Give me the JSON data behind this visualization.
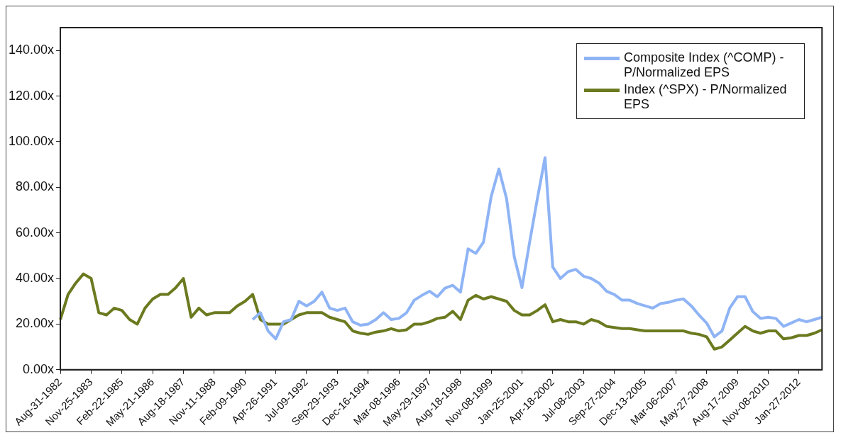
{
  "chart_data": {
    "type": "line",
    "legend": "top right",
    "grid": false,
    "marker": "none",
    "line_style": "solid",
    "categories": [
      "Aug-31-1982",
      null,
      null,
      null,
      "Nov-25-1983",
      null,
      null,
      null,
      "Feb-22-1985",
      null,
      null,
      null,
      "May-21-1986",
      null,
      null,
      null,
      "Aug-18-1987",
      null,
      null,
      null,
      "Nov-11-1988",
      null,
      null,
      null,
      "Feb-09-1990",
      null,
      null,
      null,
      "Apr-26-1991",
      null,
      null,
      null,
      "Jul-09-1992",
      null,
      null,
      null,
      "Sep-29-1993",
      null,
      null,
      null,
      "Dec-16-1994",
      null,
      null,
      null,
      "Mar-08-1996",
      null,
      null,
      null,
      "May-29-1997",
      null,
      null,
      null,
      "Aug-18-1998",
      null,
      null,
      null,
      "Nov-08-1999",
      null,
      null,
      null,
      "Jan-25-2001",
      null,
      null,
      null,
      "Apr-18-2002",
      null,
      null,
      null,
      "Jul-08-2003",
      null,
      null,
      null,
      "Sep-27-2004",
      null,
      null,
      null,
      "Dec-13-2005",
      null,
      null,
      null,
      "Mar-06-2007",
      null,
      null,
      null,
      "May-27-2008",
      null,
      null,
      null,
      "Aug-17-2009",
      null,
      null,
      null,
      "Nov-08-2010",
      null,
      null,
      null,
      "Jan-27-2012",
      null,
      null,
      null
    ],
    "ylim": [
      0,
      150
    ],
    "yticks": [
      {
        "value": 0,
        "label": "0.00x"
      },
      {
        "value": 20,
        "label": "20.00x"
      },
      {
        "value": 40,
        "label": "40.00x"
      },
      {
        "value": 60,
        "label": "60.00x"
      },
      {
        "value": 80,
        "label": "80.00x"
      },
      {
        "value": 100,
        "label": "100.00x"
      },
      {
        "value": 120,
        "label": "120.00x"
      },
      {
        "value": 140,
        "label": "140.00x"
      }
    ],
    "series": [
      {
        "name": "Composite Index (^COMP) - P/Normalized EPS",
        "color": "#8fb4f5",
        "values": [
          null,
          null,
          null,
          null,
          null,
          null,
          null,
          null,
          null,
          null,
          null,
          null,
          null,
          null,
          null,
          null,
          null,
          null,
          null,
          null,
          null,
          null,
          null,
          null,
          null,
          22,
          25,
          17,
          13.5,
          21,
          22,
          30,
          28,
          30,
          34,
          27,
          26,
          27,
          21,
          19.5,
          20,
          22,
          25,
          22,
          22.5,
          25,
          30.5,
          32.6,
          34.4,
          32,
          35.8,
          37,
          34,
          53,
          51,
          56,
          76,
          88,
          75,
          49.5,
          36,
          56,
          75,
          93,
          45,
          40,
          43,
          44,
          41,
          40,
          38,
          34.4,
          33,
          30.5,
          30.5,
          29,
          28,
          27,
          29,
          29.5,
          30.5,
          31,
          28,
          24,
          20.5,
          14.4,
          17,
          27,
          32,
          32,
          25.5,
          22.5,
          23,
          22.5,
          19,
          20.5,
          22,
          21,
          22,
          23
        ]
      },
      {
        "name": "Index (^SPX) - P/Normalized EPS",
        "color": "#6b7a1f",
        "values": [
          22,
          33,
          38,
          42,
          40,
          25,
          24,
          27,
          26,
          22,
          20,
          27,
          31,
          33,
          33,
          36,
          40,
          23,
          27,
          24,
          25,
          25,
          25,
          28,
          30,
          33,
          22,
          20,
          20,
          20,
          22,
          24,
          25,
          25,
          25,
          23,
          22,
          21,
          17,
          16,
          15.5,
          16.5,
          17,
          18,
          17,
          17.5,
          20,
          20,
          21,
          22.5,
          23,
          25.6,
          22,
          30.5,
          32.6,
          31,
          32,
          31,
          30,
          26,
          24,
          24,
          26,
          28.5,
          21,
          22,
          21,
          21,
          20,
          22,
          21,
          19,
          18.5,
          18,
          18,
          17.5,
          17,
          17,
          17,
          17,
          17,
          17,
          16,
          15.5,
          14.4,
          9,
          10,
          13,
          16,
          19,
          17,
          16,
          17,
          17,
          13.5,
          14,
          15,
          15,
          16,
          17.5
        ]
      }
    ]
  }
}
